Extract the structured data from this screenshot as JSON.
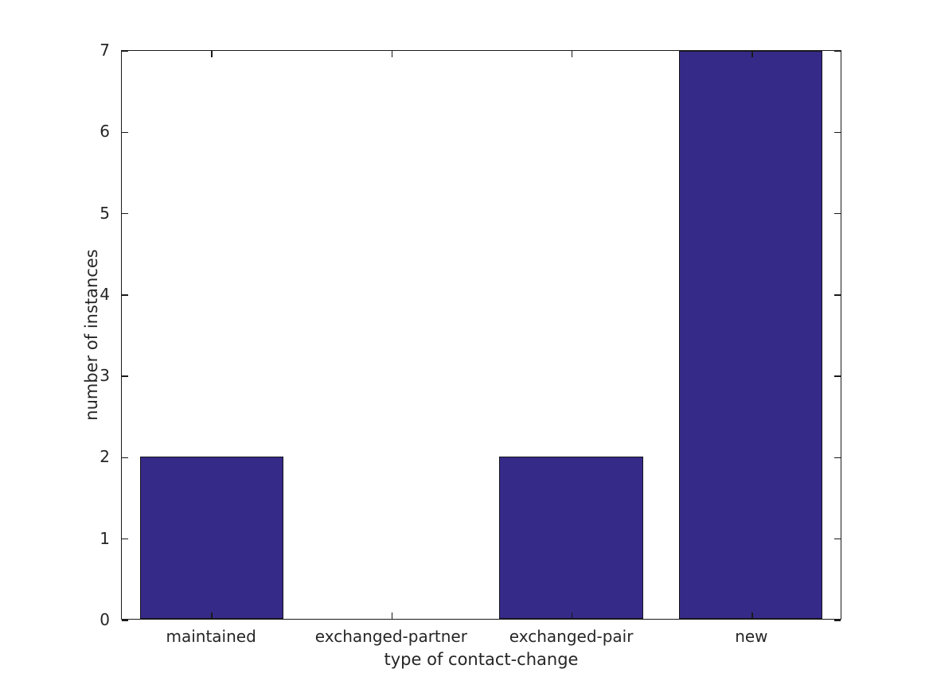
{
  "chart_data": {
    "type": "bar",
    "categories": [
      "maintained",
      "exchanged-partner",
      "exchanged-pair",
      "new"
    ],
    "values": [
      2,
      0,
      2,
      7
    ],
    "title": "",
    "xlabel": "type of contact-change",
    "ylabel": "number of instances",
    "ylim": [
      0,
      7
    ],
    "yticks": [
      0,
      1,
      2,
      3,
      4,
      5,
      6,
      7
    ],
    "bar_color": "#352a87",
    "bar_edge_color": "#14141f",
    "axis_color": "#1a1a1a",
    "text_color": "#262626",
    "background_color": "#ffffff",
    "bar_width_fraction": 0.8,
    "grid": false,
    "legend": null,
    "tick_direction": "in",
    "box": true
  }
}
